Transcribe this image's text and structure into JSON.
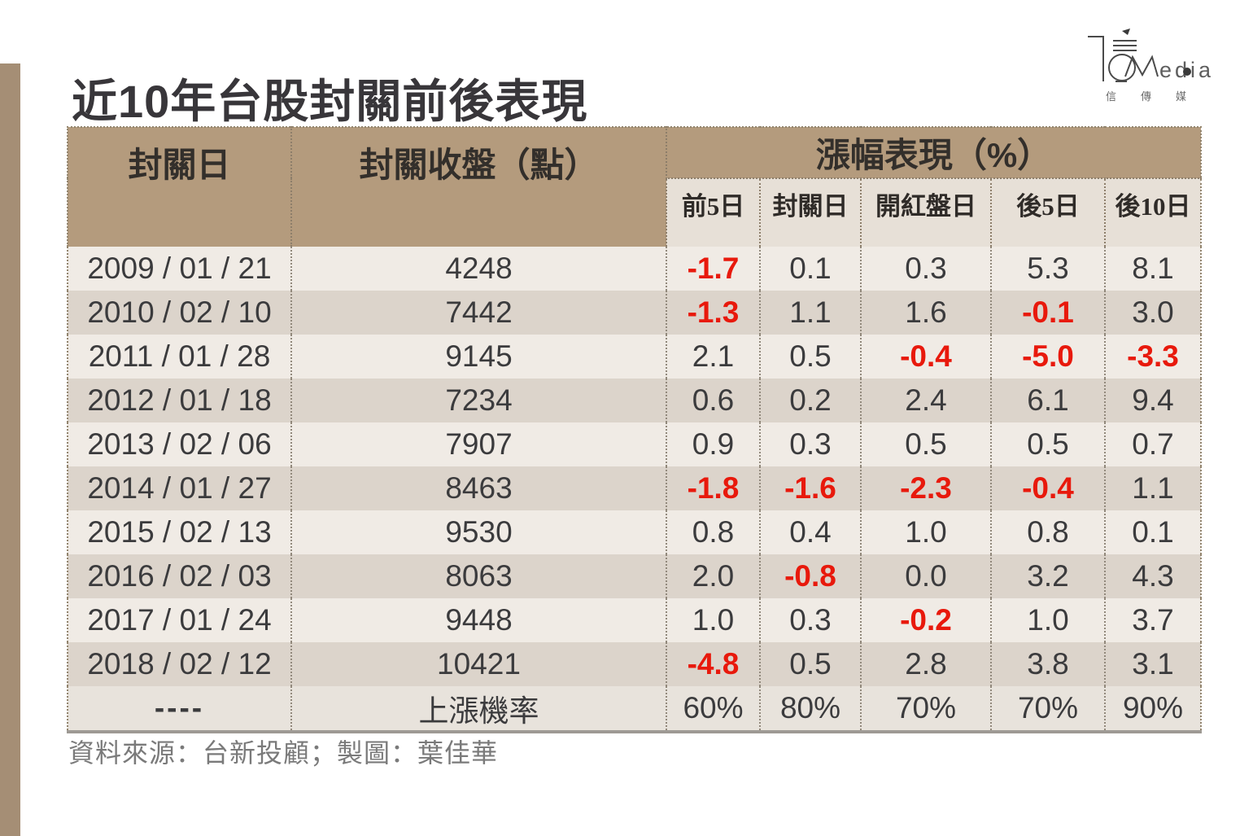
{
  "page": {
    "title": "近10年台股封關前後表現",
    "source_note": "資料來源：台新投顧；製圖：葉佳華"
  },
  "logo": {
    "brand_latin": "edia",
    "brand_monogram": "M",
    "brand_cjk": "信傳媒"
  },
  "colors": {
    "header_bg": "#B49B7D",
    "subheader_bg": "#E7E0D7",
    "row_light": "#F0EBE5",
    "row_dark": "#DCD4CB",
    "summary_bg": "#E8E3DC",
    "negative_red": "#E8190C",
    "text_dark": "#3B3B3D",
    "side_bar": "#A58E75"
  },
  "table": {
    "col_headers": {
      "date": "封關日",
      "close": "封關收盤（點）",
      "performance": "漲幅表現（%）",
      "sub": [
        "前5日",
        "封關日",
        "開紅盤日",
        "後5日",
        "後10日"
      ]
    },
    "rows": [
      {
        "date": "2009 / 01 / 21",
        "close": "4248",
        "values": [
          "-1.7",
          "0.1",
          "0.3",
          "5.3",
          "8.1"
        ]
      },
      {
        "date": "2010 / 02 / 10",
        "close": "7442",
        "values": [
          "-1.3",
          "1.1",
          "1.6",
          "-0.1",
          "3.0"
        ]
      },
      {
        "date": "2011 / 01 / 28",
        "close": "9145",
        "values": [
          "2.1",
          "0.5",
          "-0.4",
          "-5.0",
          "-3.3"
        ]
      },
      {
        "date": "2012 / 01 / 18",
        "close": "7234",
        "values": [
          "0.6",
          "0.2",
          "2.4",
          "6.1",
          "9.4"
        ]
      },
      {
        "date": "2013 / 02 / 06",
        "close": "7907",
        "values": [
          "0.9",
          "0.3",
          "0.5",
          "0.5",
          "0.7"
        ]
      },
      {
        "date": "2014 / 01 / 27",
        "close": "8463",
        "values": [
          "-1.8",
          "-1.6",
          "-2.3",
          "-0.4",
          "1.1"
        ]
      },
      {
        "date": "2015 / 02 / 13",
        "close": "9530",
        "values": [
          "0.8",
          "0.4",
          "1.0",
          "0.8",
          "0.1"
        ]
      },
      {
        "date": "2016 / 02 / 03",
        "close": "8063",
        "values": [
          "2.0",
          "-0.8",
          "0.0",
          "3.2",
          "4.3"
        ]
      },
      {
        "date": "2017 / 01 / 24",
        "close": "9448",
        "values": [
          "1.0",
          "0.3",
          "-0.2",
          "1.0",
          "3.7"
        ]
      },
      {
        "date": "2018 / 02 / 12",
        "close": "10421",
        "values": [
          "-4.8",
          "0.5",
          "2.8",
          "3.8",
          "3.1"
        ]
      }
    ],
    "summary": {
      "date": "----",
      "label": "上漲機率",
      "values": [
        "60%",
        "80%",
        "70%",
        "70%",
        "90%"
      ]
    }
  },
  "chart_data": {
    "type": "table",
    "title": "近10年台股封關前後表現",
    "columns": [
      "封關日",
      "封關收盤（點）",
      "前5日",
      "封關日",
      "開紅盤日",
      "後5日",
      "後10日"
    ],
    "group_header": "漲幅表現（%）",
    "rows": [
      [
        "2009 / 01 / 21",
        4248,
        -1.7,
        0.1,
        0.3,
        5.3,
        8.1
      ],
      [
        "2010 / 02 / 10",
        7442,
        -1.3,
        1.1,
        1.6,
        -0.1,
        3.0
      ],
      [
        "2011 / 01 / 28",
        9145,
        2.1,
        0.5,
        -0.4,
        -5.0,
        -3.3
      ],
      [
        "2012 / 01 / 18",
        7234,
        0.6,
        0.2,
        2.4,
        6.1,
        9.4
      ],
      [
        "2013 / 02 / 06",
        7907,
        0.9,
        0.3,
        0.5,
        0.5,
        0.7
      ],
      [
        "2014 / 01 / 27",
        8463,
        -1.8,
        -1.6,
        -2.3,
        -0.4,
        1.1
      ],
      [
        "2015 / 02 / 13",
        9530,
        0.8,
        0.4,
        1.0,
        0.8,
        0.1
      ],
      [
        "2016 / 02 / 03",
        8063,
        2.0,
        -0.8,
        0.0,
        3.2,
        4.3
      ],
      [
        "2017 / 01 / 24",
        9448,
        1.0,
        0.3,
        -0.2,
        1.0,
        3.7
      ],
      [
        "2018 / 02 / 12",
        10421,
        -4.8,
        0.5,
        2.8,
        3.8,
        3.1
      ]
    ],
    "summary_row": [
      "----",
      "上漲機率",
      "60%",
      "80%",
      "70%",
      "70%",
      "90%"
    ],
    "source": "資料來源：台新投顧；製圖：葉佳華"
  }
}
